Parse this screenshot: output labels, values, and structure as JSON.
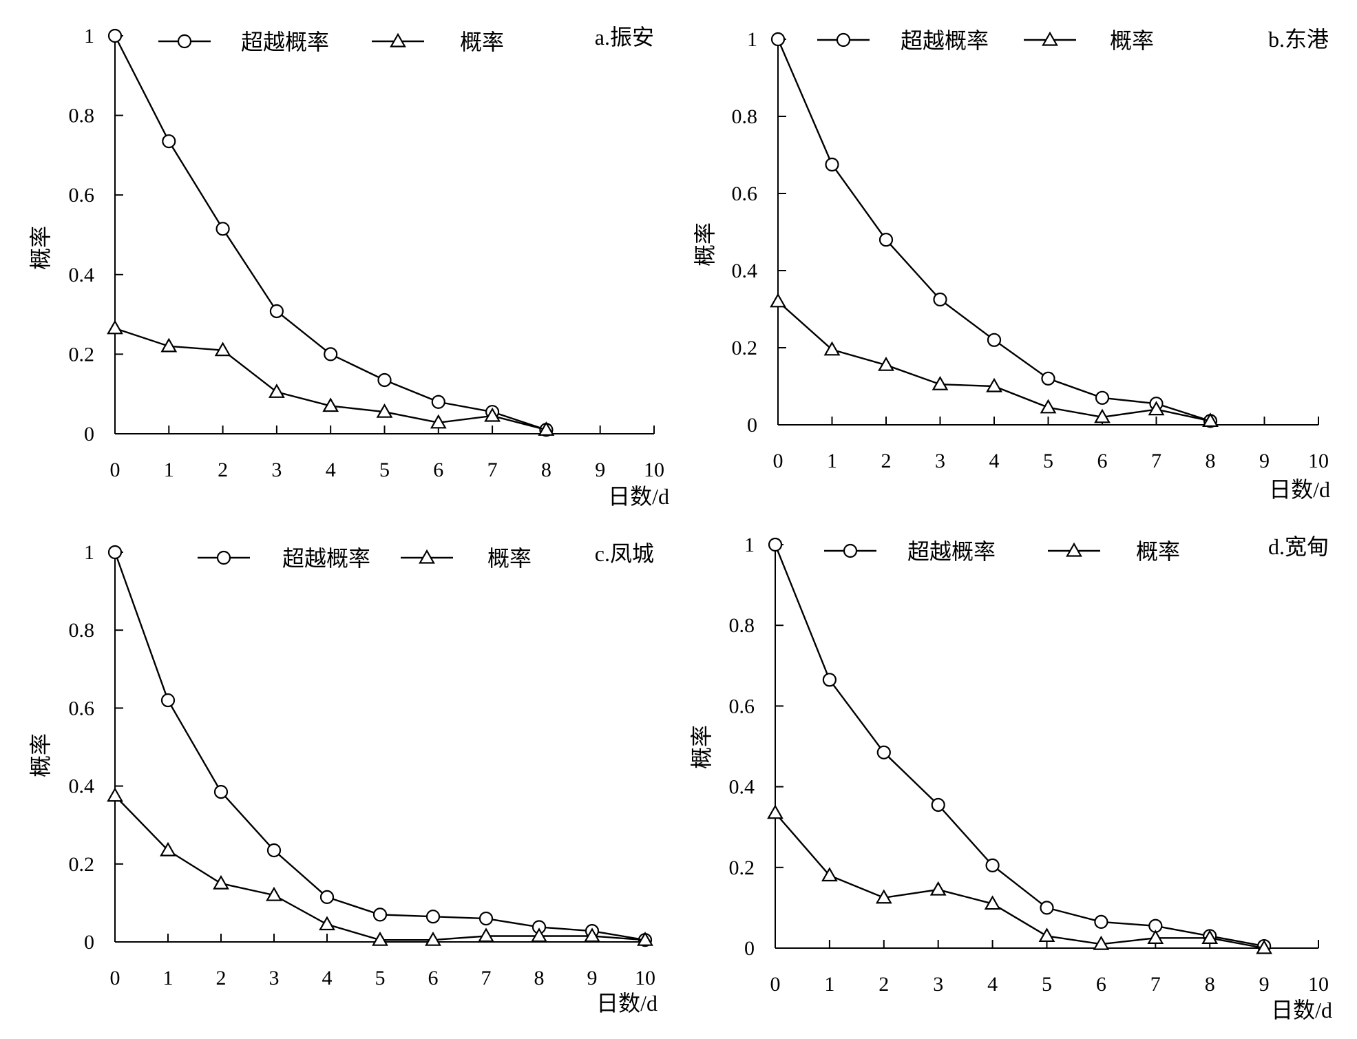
{
  "chart_data": [
    {
      "type": "line",
      "panel_label": "a.振安",
      "xlabel": "日数/d",
      "ylabel": "概率",
      "xlim": [
        0,
        10
      ],
      "ylim": [
        0,
        1
      ],
      "x_ticks": [
        "0",
        "1",
        "2",
        "3",
        "4",
        "5",
        "6",
        "7",
        "8",
        "9",
        "10"
      ],
      "y_ticks": [
        "0",
        "0.2",
        "0.4",
        "0.6",
        "0.8",
        "1"
      ],
      "legend_position": "top",
      "series": [
        {
          "name": "超越概率",
          "marker": "circle",
          "x": [
            0,
            1,
            2,
            3,
            4,
            5,
            6,
            7,
            8
          ],
          "values": [
            1.0,
            0.735,
            0.515,
            0.308,
            0.2,
            0.135,
            0.08,
            0.055,
            0.01
          ]
        },
        {
          "name": "概率",
          "marker": "triangle",
          "x": [
            0,
            1,
            2,
            3,
            4,
            5,
            6,
            7,
            8
          ],
          "values": [
            0.265,
            0.22,
            0.21,
            0.105,
            0.07,
            0.055,
            0.028,
            0.045,
            0.01
          ]
        }
      ]
    },
    {
      "type": "line",
      "panel_label": "b.东港",
      "xlabel": "日数/d",
      "ylabel": "概率",
      "xlim": [
        0,
        10
      ],
      "ylim": [
        0,
        1
      ],
      "x_ticks": [
        "0",
        "1",
        "2",
        "3",
        "4",
        "5",
        "6",
        "7",
        "8",
        "9",
        "10"
      ],
      "y_ticks": [
        "0",
        "0.2",
        "0.4",
        "0.6",
        "0.8",
        "1"
      ],
      "legend_position": "top",
      "series": [
        {
          "name": "超越概率",
          "marker": "circle",
          "x": [
            0,
            1,
            2,
            3,
            4,
            5,
            6,
            7,
            8
          ],
          "values": [
            1.0,
            0.675,
            0.48,
            0.325,
            0.22,
            0.12,
            0.07,
            0.055,
            0.01
          ]
        },
        {
          "name": "概率",
          "marker": "triangle",
          "x": [
            0,
            1,
            2,
            3,
            4,
            5,
            6,
            7,
            8
          ],
          "values": [
            0.32,
            0.195,
            0.155,
            0.105,
            0.1,
            0.045,
            0.02,
            0.04,
            0.01
          ]
        }
      ]
    },
    {
      "type": "line",
      "panel_label": "c.凤城",
      "xlabel": "日数/d",
      "ylabel": "概率",
      "xlim": [
        0,
        10
      ],
      "ylim": [
        0,
        1
      ],
      "x_ticks": [
        "0",
        "1",
        "2",
        "3",
        "4",
        "5",
        "6",
        "7",
        "8",
        "9",
        "10"
      ],
      "y_ticks": [
        "0",
        "0.2",
        "0.4",
        "0.6",
        "0.8",
        "1"
      ],
      "legend_position": "top",
      "series": [
        {
          "name": "超越概率",
          "marker": "circle",
          "x": [
            0,
            1,
            2,
            3,
            4,
            5,
            6,
            7,
            8,
            9,
            10
          ],
          "values": [
            1.0,
            0.62,
            0.385,
            0.235,
            0.115,
            0.07,
            0.065,
            0.06,
            0.038,
            0.028,
            0.005
          ]
        },
        {
          "name": "概率",
          "marker": "triangle",
          "x": [
            0,
            1,
            2,
            3,
            4,
            5,
            6,
            7,
            8,
            9,
            10
          ],
          "values": [
            0.375,
            0.235,
            0.15,
            0.12,
            0.045,
            0.005,
            0.005,
            0.015,
            0.015,
            0.015,
            0.005
          ]
        }
      ]
    },
    {
      "type": "line",
      "panel_label": "d.宽甸",
      "xlabel": "日数/d",
      "ylabel": "概率",
      "xlim": [
        0,
        10
      ],
      "ylim": [
        0,
        1
      ],
      "x_ticks": [
        "0",
        "1",
        "2",
        "3",
        "4",
        "5",
        "6",
        "7",
        "8",
        "9",
        "10"
      ],
      "y_ticks": [
        "0",
        "0.2",
        "0.4",
        "0.6",
        "0.8",
        "1"
      ],
      "legend_position": "top",
      "series": [
        {
          "name": "超越概率",
          "marker": "circle",
          "x": [
            0,
            1,
            2,
            3,
            4,
            5,
            6,
            7,
            8,
            9
          ],
          "values": [
            1.0,
            0.665,
            0.485,
            0.355,
            0.205,
            0.1,
            0.065,
            0.055,
            0.03,
            0.005
          ]
        },
        {
          "name": "概率",
          "marker": "triangle",
          "x": [
            0,
            1,
            2,
            3,
            4,
            5,
            6,
            7,
            8,
            9
          ],
          "values": [
            0.335,
            0.18,
            0.125,
            0.145,
            0.11,
            0.03,
            0.01,
            0.025,
            0.025,
            0.0
          ]
        }
      ]
    }
  ]
}
